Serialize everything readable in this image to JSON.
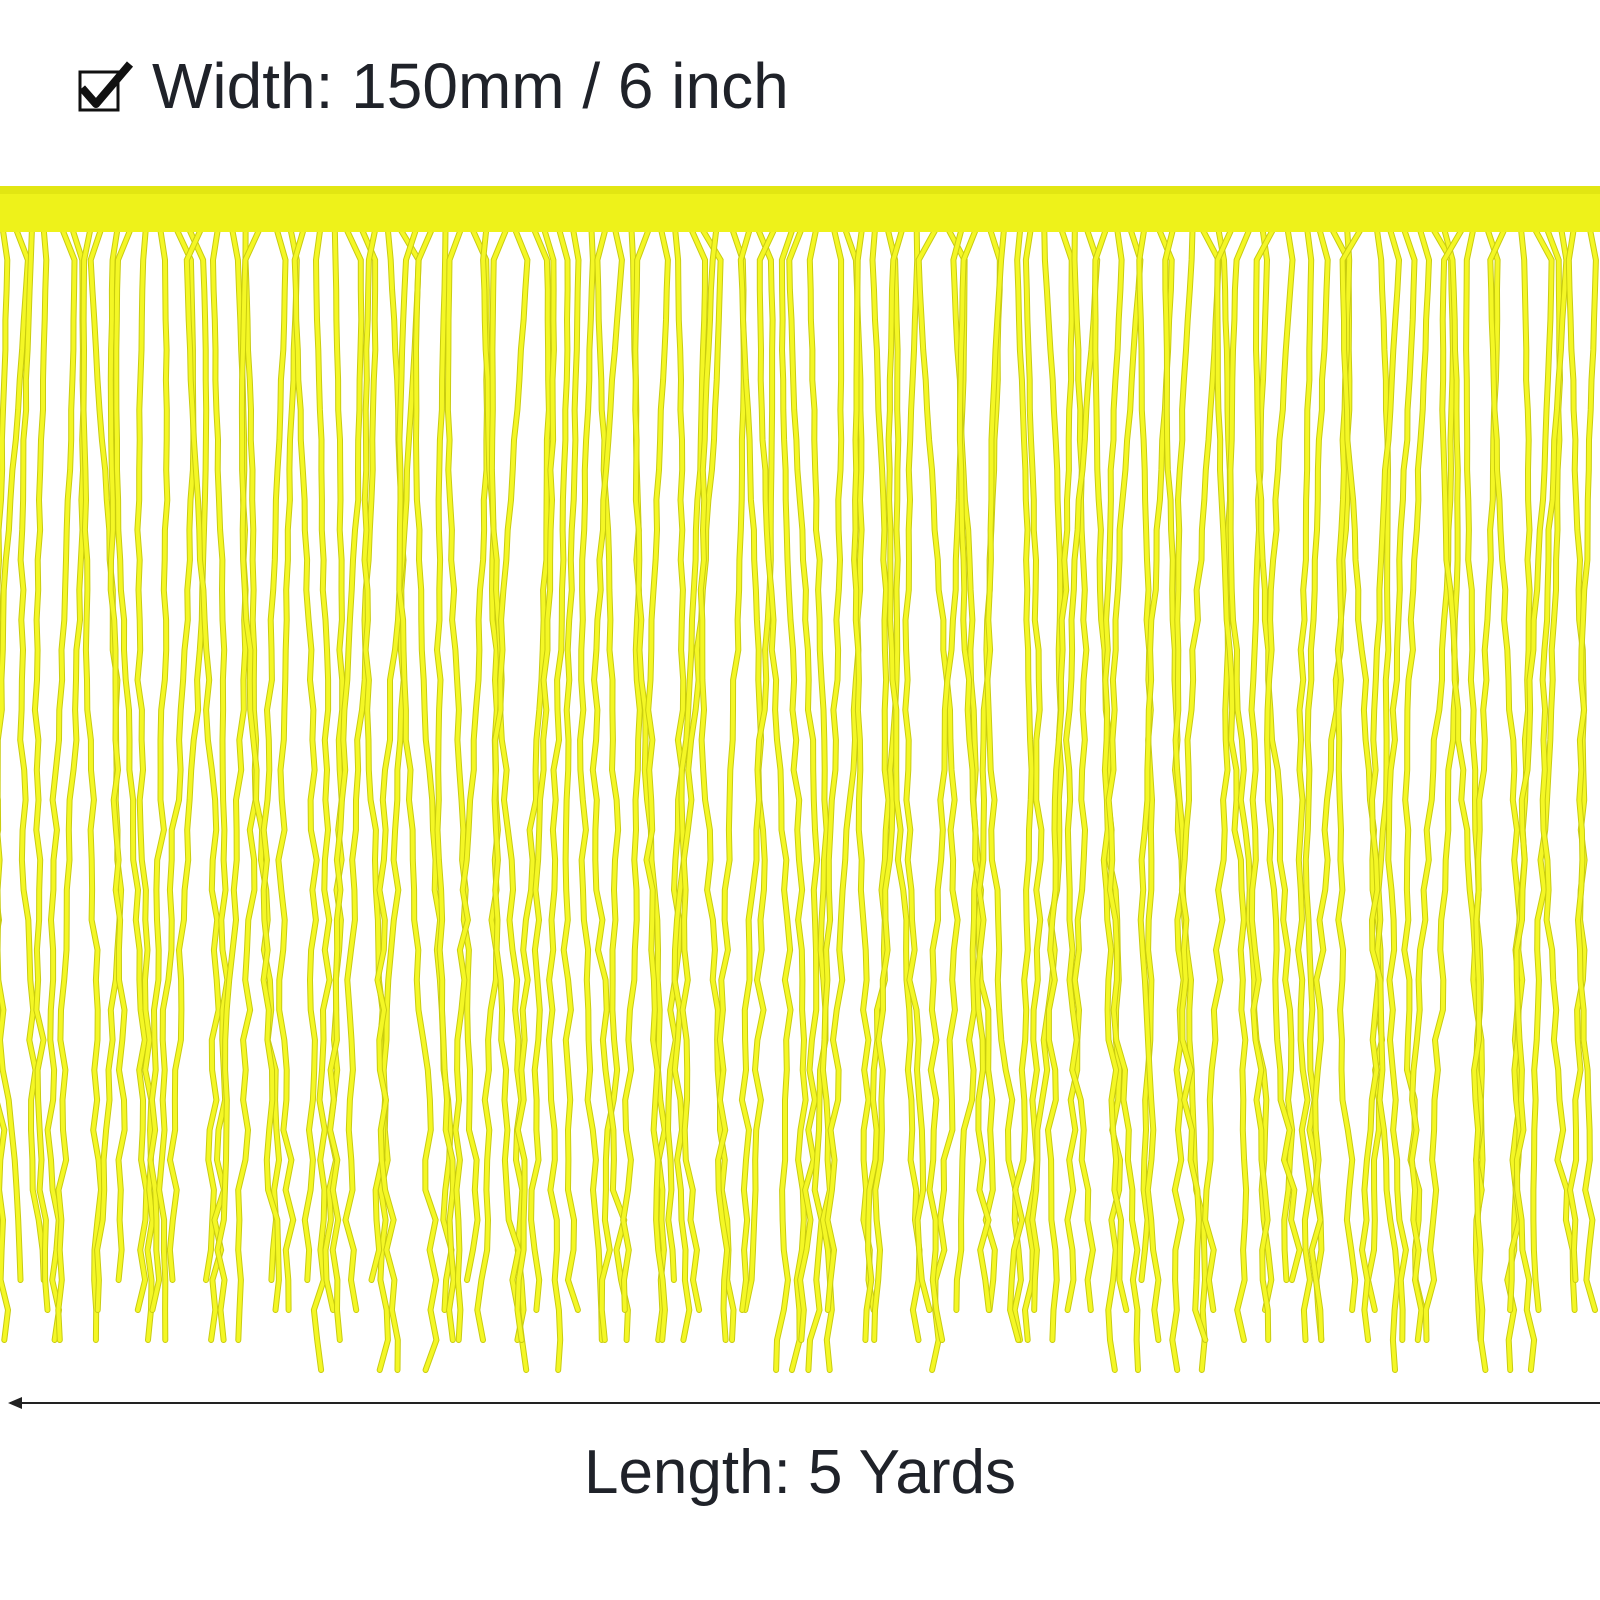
{
  "width_label": "Width: 150mm / 6 inch",
  "length_label": "Length: 5 Yards"
}
